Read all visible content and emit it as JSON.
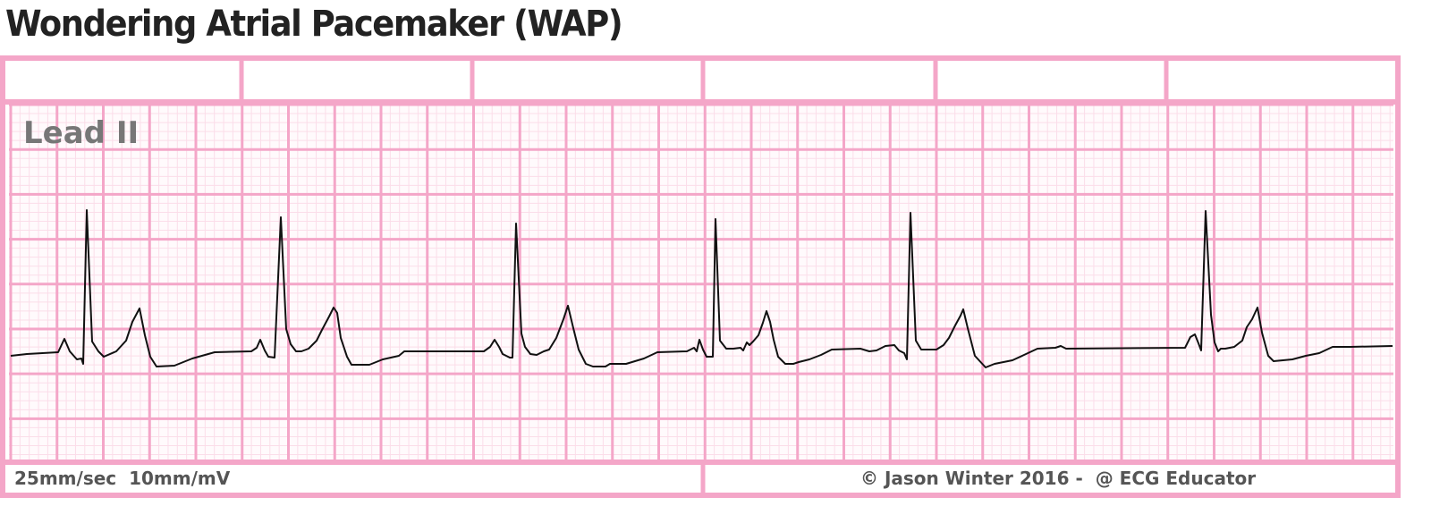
{
  "title": "Wondering Atrial Pacemaker (WAP)",
  "lead_label": "Lead II",
  "settings_text": "25mm/sec  10mm/mV",
  "credit_text": "© Jason Winter 2016 -  @ ECG Educator",
  "colors": {
    "title": "#222222",
    "grid_major": "#f4a6c8",
    "grid_minor": "#fbdde9",
    "trace": "#111111",
    "label": "#777777"
  }
}
